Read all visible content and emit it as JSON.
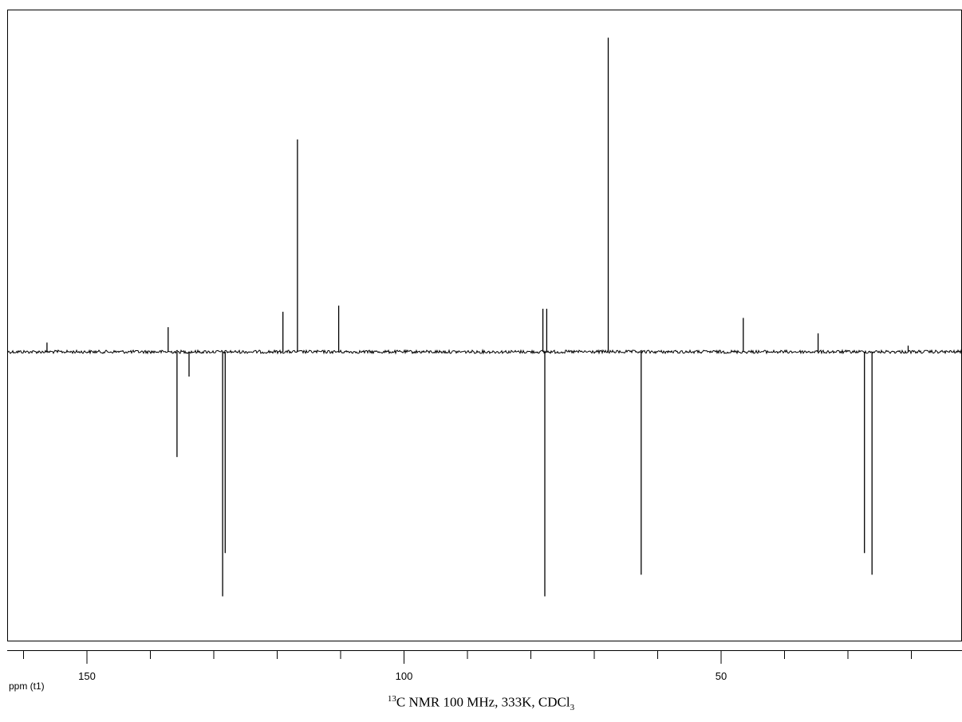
{
  "caption": {
    "isotope_mass": "13",
    "main_text": "C NMR 100 MHz, 333K, CDCl",
    "subscript": "3"
  },
  "chart_data": {
    "type": "line",
    "title": "",
    "xlabel": "ppm (t1)",
    "ylabel": "",
    "x_reversed": true,
    "xlim": [
      163,
      12
    ],
    "ylim": [
      -1.0,
      1.05
    ],
    "x_major_ticks": [
      150,
      100,
      50
    ],
    "x_tick_labels": [
      "150",
      "100",
      "50"
    ],
    "x_minor_ticks": [
      160,
      140,
      130,
      120,
      110,
      90,
      80,
      70,
      60,
      40,
      30,
      20
    ],
    "grid": false,
    "legend": "none",
    "line_color": "#000000",
    "series": [
      {
        "peaks": [
          {
            "ppm": 156.3,
            "intensity": 0.03
          },
          {
            "ppm": 137.2,
            "intensity": 0.08
          },
          {
            "ppm": 135.8,
            "intensity": -0.34
          },
          {
            "ppm": 133.9,
            "intensity": -0.08
          },
          {
            "ppm": 128.6,
            "intensity": -0.79
          },
          {
            "ppm": 128.2,
            "intensity": -0.65
          },
          {
            "ppm": 119.1,
            "intensity": 0.13
          },
          {
            "ppm": 116.8,
            "intensity": 0.69
          },
          {
            "ppm": 110.3,
            "intensity": 0.15
          },
          {
            "ppm": 78.1,
            "intensity": 0.14
          },
          {
            "ppm": 77.8,
            "intensity": -0.79
          },
          {
            "ppm": 77.5,
            "intensity": 0.14
          },
          {
            "ppm": 67.8,
            "intensity": 1.02
          },
          {
            "ppm": 62.6,
            "intensity": -0.72
          },
          {
            "ppm": 46.5,
            "intensity": 0.11
          },
          {
            "ppm": 34.7,
            "intensity": 0.06
          },
          {
            "ppm": 27.4,
            "intensity": -0.65
          },
          {
            "ppm": 26.2,
            "intensity": -0.72
          },
          {
            "ppm": 20.5,
            "intensity": 0.02
          }
        ]
      }
    ]
  }
}
